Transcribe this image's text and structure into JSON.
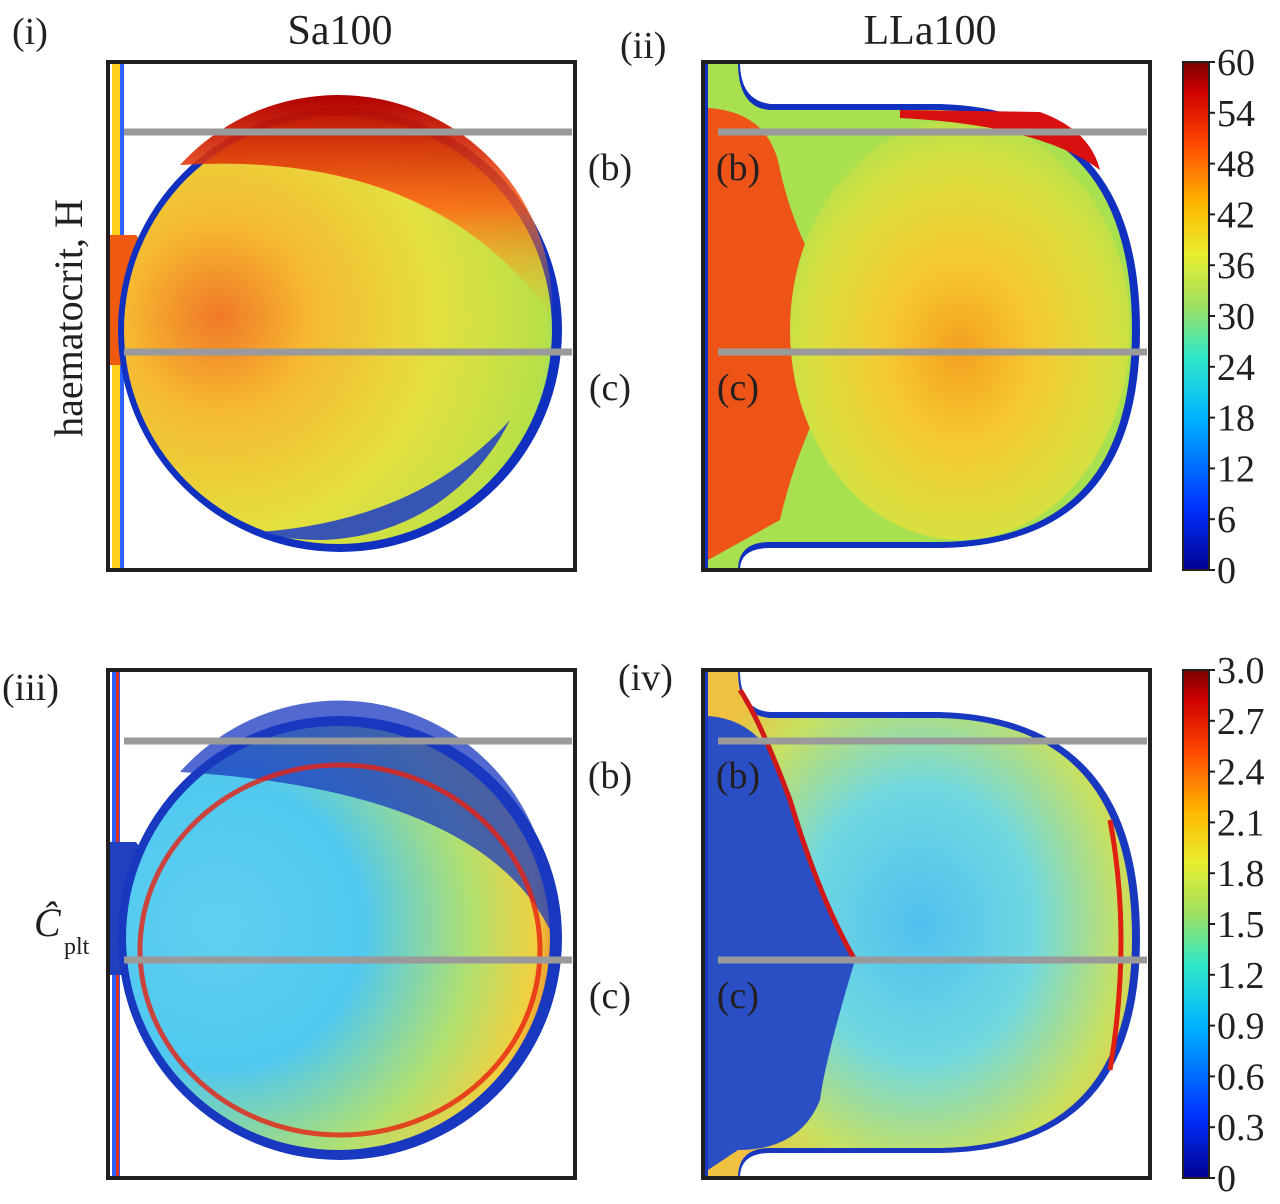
{
  "chart_data": [
    {
      "type": "heatmap",
      "panel": "(i)",
      "title": "Sa100",
      "ylabel": "haematocrit, H",
      "quantity": "haematocrit",
      "geometry": "saccular",
      "cut_lines": [
        "(b)",
        "(c)"
      ],
      "colorbar": {
        "min": 0,
        "max": 60,
        "ticks": [
          "60",
          "54",
          "48",
          "42",
          "36",
          "30",
          "24",
          "18",
          "12",
          "6",
          "0"
        ]
      }
    },
    {
      "type": "heatmap",
      "panel": "(ii)",
      "title": "LLa100",
      "quantity": "haematocrit",
      "geometry": "lateral",
      "cut_lines": [
        "(b)",
        "(c)"
      ],
      "colorbar": {
        "min": 0,
        "max": 60
      }
    },
    {
      "type": "heatmap",
      "panel": "(iii)",
      "ylabel_main": "Ĉ",
      "ylabel_sub": "plt",
      "quantity": "platelet concentration",
      "geometry": "saccular",
      "cut_lines": [
        "(b)",
        "(c)"
      ],
      "colorbar": {
        "min": 0,
        "max": 3.0,
        "ticks": [
          "3.0",
          "2.7",
          "2.4",
          "2.1",
          "1.8",
          "1.5",
          "1.2",
          "0.9",
          "0.6",
          "0.3",
          "0"
        ]
      }
    },
    {
      "type": "heatmap",
      "panel": "(iv)",
      "quantity": "platelet concentration",
      "geometry": "lateral",
      "cut_lines": [
        "(b)",
        "(c)"
      ],
      "colorbar": {
        "min": 0,
        "max": 3.0
      }
    }
  ],
  "colors": {
    "jet": [
      "#00008f",
      "#0020ff",
      "#00b0ff",
      "#40e0c0",
      "#a0e060",
      "#f0f020",
      "#ffb000",
      "#ff5000",
      "#d00000",
      "#800000"
    ],
    "cut_line": "#9a9a9a",
    "frame": "#231f20"
  }
}
